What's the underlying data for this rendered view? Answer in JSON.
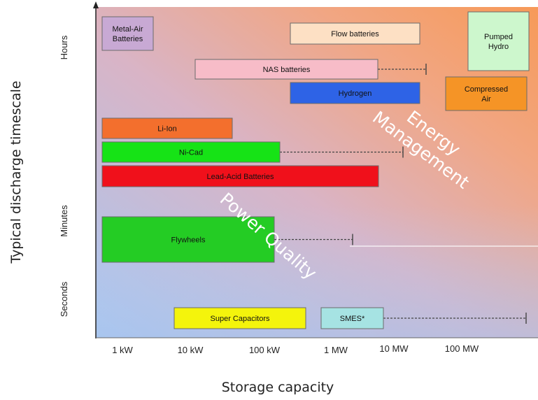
{
  "chart_data": {
    "type": "range-bar",
    "title": "",
    "xlabel": "Storage capacity",
    "ylabel": "Typical discharge timescale",
    "x_ticks": [
      "1 kW",
      "10 kW",
      "100 kW",
      "1 MW",
      "10 MW",
      "100 MW"
    ],
    "y_ticks": [
      "Hours",
      "Minutes",
      "Seconds"
    ],
    "region_labels": [
      {
        "text_line1": "Energy",
        "text_line2": "Management"
      },
      {
        "text_line1": "Power Quality",
        "text_line2": ""
      }
    ],
    "technologies": [
      {
        "name": "Metal-Air Batteries",
        "line1": "Metal-Air",
        "line2": "Batteries",
        "min": "1 kW",
        "max": "10 kW",
        "extension_to": "",
        "color": "#c8a9d4"
      },
      {
        "name": "Flow batteries",
        "line1": "Flow batteries",
        "line2": "",
        "min": "1 MW",
        "max": "10 MW",
        "extension_to": "",
        "color": "#fde0c4"
      },
      {
        "name": "Pumped Hydro",
        "line1": "Pumped",
        "line2": "Hydro",
        "min": "100 MW",
        "max": "1 GW",
        "extension_to": "",
        "color": "#cdf7cd"
      },
      {
        "name": "NAS batteries",
        "line1": "NAS batteries",
        "line2": "",
        "min": "10 kW",
        "max": "1 MW",
        "extension_to": "10 MW",
        "color": "#f7bcc8"
      },
      {
        "name": "Hydrogen",
        "line1": "Hydrogen",
        "line2": "",
        "min": "1 MW",
        "max": "10 MW",
        "extension_to": "",
        "color": "#2e63e6"
      },
      {
        "name": "Compressed Air",
        "line1": "Compressed",
        "line2": "Air",
        "min": "10 MW",
        "max": "100 MW",
        "extension_to": "",
        "color": "#f59426"
      },
      {
        "name": "Li-Ion",
        "line1": "Li-Ion",
        "line2": "",
        "min": "1 kW",
        "max": "100 kW",
        "extension_to": "",
        "color": "#f36f2d"
      },
      {
        "name": "Ni-Cad",
        "line1": "Ni-Cad",
        "line2": "",
        "min": "1 kW",
        "max": "100 kW",
        "extension_to": "10 MW",
        "color": "#16e316"
      },
      {
        "name": "Lead-Acid Batteries",
        "line1": "Lead-Acid Batteries",
        "line2": "",
        "min": "1 kW",
        "max": "10 MW",
        "extension_to": "",
        "color": "#f0101b"
      },
      {
        "name": "Flywheels",
        "line1": "Flywheels",
        "line2": "",
        "min": "1 kW",
        "max": "100 kW",
        "extension_to": "1 MW",
        "color": "#24cc24"
      },
      {
        "name": "Super Capacitors",
        "line1": "Super Capacitors",
        "line2": "",
        "min": "10 kW",
        "max": "1 MW",
        "extension_to": "",
        "color": "#f4f40c"
      },
      {
        "name": "SMES*",
        "line1": "SMES*",
        "line2": "",
        "min": "1 MW",
        "max": "10 MW",
        "extension_to": "1 GW",
        "color": "#a6e3e3"
      }
    ]
  }
}
